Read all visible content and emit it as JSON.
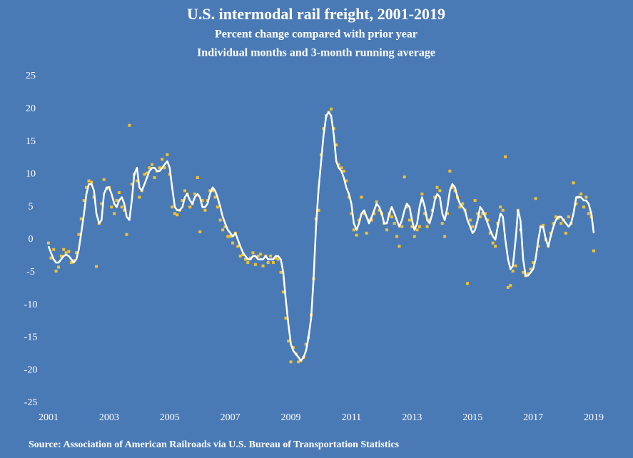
{
  "chart_data": {
    "type": "scatter",
    "title": "U.S. intermodal rail freight, 2001-2019",
    "subtitle": [
      "Percent change compared with prior year",
      "Individual months and 3-month running average"
    ],
    "source": "Source: Association of American Railroads via U.S. Bureau of Transportation Statistics",
    "xlim": [
      2001,
      2019
    ],
    "xticks": [
      2001,
      2003,
      2005,
      2007,
      2009,
      2011,
      2013,
      2015,
      2017,
      2019
    ],
    "ylim": [
      -25,
      25
    ],
    "yticks": [
      -25,
      -20,
      -15,
      -10,
      -5,
      0,
      5,
      10,
      15,
      20,
      25
    ],
    "x": [
      2001,
      2001.08,
      2001.17,
      2001.25,
      2001.33,
      2001.42,
      2001.5,
      2001.58,
      2001.67,
      2001.75,
      2001.83,
      2001.92,
      2002,
      2002.08,
      2002.17,
      2002.25,
      2002.33,
      2002.42,
      2002.5,
      2002.58,
      2002.67,
      2002.75,
      2002.83,
      2002.92,
      2003,
      2003.08,
      2003.17,
      2003.25,
      2003.33,
      2003.42,
      2003.5,
      2003.58,
      2003.67,
      2003.75,
      2003.83,
      2003.92,
      2004,
      2004.08,
      2004.17,
      2004.25,
      2004.33,
      2004.42,
      2004.5,
      2004.58,
      2004.67,
      2004.75,
      2004.83,
      2004.92,
      2005,
      2005.08,
      2005.17,
      2005.25,
      2005.33,
      2005.42,
      2005.5,
      2005.58,
      2005.67,
      2005.75,
      2005.83,
      2005.92,
      2006,
      2006.08,
      2006.17,
      2006.25,
      2006.33,
      2006.42,
      2006.5,
      2006.58,
      2006.67,
      2006.75,
      2006.83,
      2006.92,
      2007,
      2007.08,
      2007.17,
      2007.25,
      2007.33,
      2007.42,
      2007.5,
      2007.58,
      2007.67,
      2007.75,
      2007.83,
      2007.92,
      2008,
      2008.08,
      2008.17,
      2008.25,
      2008.33,
      2008.42,
      2008.5,
      2008.58,
      2008.67,
      2008.75,
      2008.83,
      2008.92,
      2009,
      2009.08,
      2009.17,
      2009.25,
      2009.33,
      2009.42,
      2009.5,
      2009.58,
      2009.67,
      2009.75,
      2009.83,
      2009.92,
      2010,
      2010.08,
      2010.17,
      2010.25,
      2010.33,
      2010.42,
      2010.5,
      2010.58,
      2010.67,
      2010.75,
      2010.83,
      2010.92,
      2011,
      2011.08,
      2011.17,
      2011.25,
      2011.33,
      2011.42,
      2011.5,
      2011.58,
      2011.67,
      2011.75,
      2011.83,
      2011.92,
      2012,
      2012.08,
      2012.17,
      2012.25,
      2012.33,
      2012.42,
      2012.5,
      2012.58,
      2012.67,
      2012.75,
      2012.83,
      2012.92,
      2013,
      2013.08,
      2013.17,
      2013.25,
      2013.33,
      2013.42,
      2013.5,
      2013.58,
      2013.67,
      2013.75,
      2013.83,
      2013.92,
      2014,
      2014.08,
      2014.17,
      2014.25,
      2014.33,
      2014.42,
      2014.5,
      2014.58,
      2014.67,
      2014.75,
      2014.83,
      2014.92,
      2015,
      2015.08,
      2015.17,
      2015.25,
      2015.33,
      2015.42,
      2015.5,
      2015.58,
      2015.67,
      2015.75,
      2015.83,
      2015.92,
      2016,
      2016.08,
      2016.17,
      2016.25,
      2016.33,
      2016.42,
      2016.5,
      2016.58,
      2016.67,
      2016.75,
      2016.83,
      2016.92,
      2017,
      2017.08,
      2017.17,
      2017.25,
      2017.33,
      2017.42,
      2017.5,
      2017.58,
      2017.67,
      2017.75,
      2017.83,
      2017.92,
      2018,
      2018.08,
      2018.17,
      2018.25,
      2018.33,
      2018.42,
      2018.5,
      2018.58,
      2018.67,
      2018.75,
      2018.83,
      2018.92,
      2019
    ],
    "series": [
      {
        "type": "scatter",
        "color": "#f2c12e",
        "values": [
          -0.5,
          -2.8,
          -1.5,
          -4.8,
          -4.2,
          -2.5,
          -1.5,
          -2,
          -1.8,
          -3.5,
          -3.2,
          -2,
          0.8,
          3.2,
          6,
          8,
          9,
          8.8,
          6.5,
          -4.1,
          2.5,
          5.5,
          9.2,
          7.8,
          8,
          5,
          4,
          6,
          7.2,
          5,
          4.5,
          0.8,
          17.5,
          8.5,
          10,
          9,
          6.5,
          7.5,
          10,
          10.2,
          11,
          11.5,
          9.5,
          10.5,
          11,
          12.3,
          11,
          13,
          10,
          5,
          4,
          3.8,
          4.5,
          6,
          7.5,
          7,
          5,
          5.5,
          7,
          9.5,
          1.2,
          6,
          4.5,
          6,
          7.5,
          7.5,
          6.5,
          5,
          3,
          1.5,
          2,
          0.5,
          0.5,
          -0.5,
          1,
          -1,
          -2.5,
          -2.3,
          -3,
          -3.5,
          -2.8,
          -2,
          -3.8,
          -2.5,
          -2.2,
          -4,
          -2.5,
          -3.5,
          -2.5,
          -3.5,
          -2.8,
          -3,
          -5,
          -8,
          -12,
          -15.5,
          -18.7,
          -16.5,
          -17.5,
          -18.7,
          -18.5,
          -18,
          -16,
          -15,
          -11.5,
          -6,
          3.2,
          4.5,
          13,
          17,
          19,
          19.5,
          20,
          17,
          14.5,
          11.5,
          11,
          10.5,
          9,
          6.5,
          4,
          1.5,
          0.7,
          3,
          6.5,
          4,
          1,
          3,
          3,
          4,
          5.8,
          4.5,
          4,
          2.5,
          1.5,
          4,
          3.5,
          2.5,
          0.5,
          -1,
          2,
          9.6,
          5,
          3,
          2,
          0.5,
          1.5,
          2,
          7,
          4,
          2,
          3,
          4.5,
          6.5,
          8,
          7.5,
          2.5,
          0.5,
          4,
          10.5,
          8,
          7.5,
          6.5,
          5,
          5.5,
          4.5,
          -6.7,
          3,
          2,
          6,
          4,
          3.5,
          4,
          4,
          3,
          1,
          -0.5,
          -1,
          2.5,
          5,
          4.5,
          12.7,
          -7.3,
          -7,
          -4.8,
          -4,
          4.5,
          1.5,
          -5,
          -5.5,
          -5.2,
          -4.5,
          -3.5,
          6.3,
          -1,
          2,
          2.2,
          0,
          -1,
          1,
          2.5,
          3.5,
          3.3,
          2.5,
          3,
          1,
          3.5,
          2.5,
          8.7,
          5.5,
          6.5,
          7,
          5,
          6.5,
          4,
          3.5,
          -1.7
        ]
      },
      {
        "type": "line",
        "color": "#ffffff",
        "values": [
          -1,
          -2,
          -3,
          -3.5,
          -3.5,
          -3,
          -2.5,
          -2.3,
          -2.5,
          -3,
          -3.5,
          -3,
          -1.5,
          1,
          4,
          7,
          8.5,
          8.5,
          7.5,
          4,
          2.5,
          3,
          7,
          8,
          8,
          7,
          5.5,
          5,
          6,
          6.5,
          5.5,
          3.5,
          3,
          6,
          10,
          11,
          8,
          7.5,
          8.5,
          9.5,
          10.5,
          11,
          11,
          10.5,
          10.5,
          11,
          11.5,
          12,
          11,
          8,
          5,
          4.5,
          4.5,
          5,
          6.5,
          7,
          6,
          5.5,
          6.5,
          7,
          6.5,
          5,
          5,
          5.5,
          7,
          8,
          7.5,
          6.5,
          5,
          3.5,
          2.5,
          1.5,
          1,
          0.5,
          1,
          0,
          -1,
          -2,
          -2.5,
          -3,
          -3,
          -2.5,
          -2.5,
          -3,
          -3,
          -3,
          -2.5,
          -3,
          -3,
          -3,
          -2.5,
          -2.5,
          -3,
          -5,
          -9,
          -13,
          -16,
          -17,
          -17.5,
          -18,
          -18.5,
          -18,
          -17,
          -15,
          -12,
          -6,
          2,
          8,
          12,
          16,
          19,
          19.5,
          19,
          16,
          12,
          11,
          10.5,
          9.5,
          8,
          7,
          5.5,
          2.5,
          1.5,
          2.5,
          4,
          4.5,
          3.5,
          2.5,
          3.5,
          4.5,
          5.5,
          5,
          4,
          2.5,
          2.5,
          4,
          5,
          4,
          3,
          2,
          3,
          4.5,
          5.5,
          5,
          3,
          1.5,
          2.5,
          5,
          6.5,
          5,
          3,
          2.5,
          4,
          6,
          7,
          6.5,
          4,
          3,
          5,
          7.5,
          8.5,
          8,
          6.5,
          5.5,
          5,
          4.5,
          3,
          2,
          1,
          1.5,
          3,
          5,
          4.5,
          3.5,
          2.5,
          1.5,
          0.5,
          0,
          2,
          4,
          3.5,
          0,
          -3,
          -4.5,
          -4,
          0,
          4.5,
          3,
          -3,
          -5.5,
          -5.5,
          -5,
          -4.5,
          -3,
          0,
          2,
          2,
          0,
          -1,
          0.5,
          2,
          3,
          3.5,
          3.5,
          3,
          2.5,
          2,
          2.5,
          4,
          6.5,
          6.5,
          6.5,
          6,
          6,
          5.5,
          4,
          1
        ]
      }
    ]
  }
}
